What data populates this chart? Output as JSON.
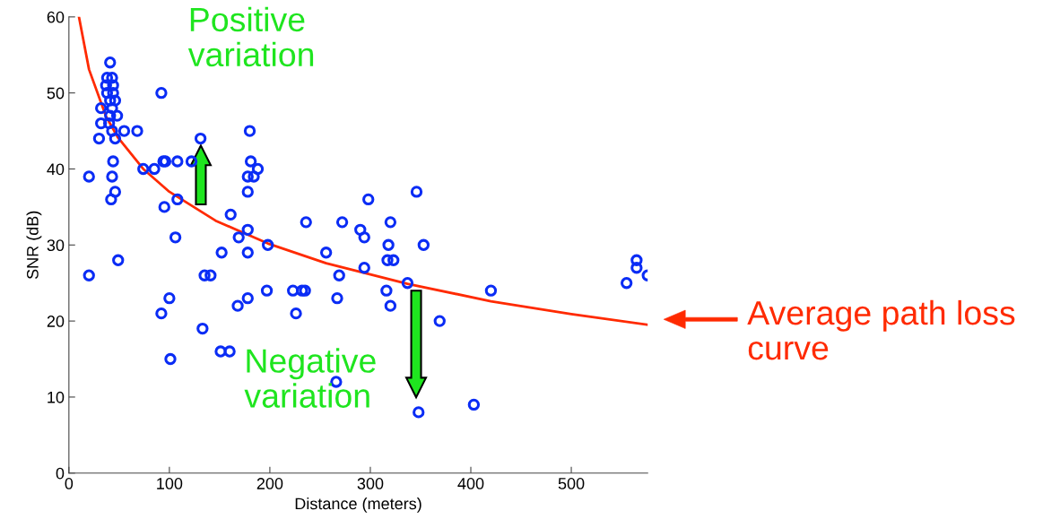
{
  "chart_data": {
    "type": "scatter",
    "xlabel": "Distance (meters)",
    "ylabel": "SNR (dB)",
    "xlim": [
      0,
      576
    ],
    "ylim": [
      0,
      60
    ],
    "xticks": [
      0,
      100,
      200,
      300,
      400,
      500
    ],
    "yticks": [
      0,
      10,
      20,
      30,
      40,
      50,
      60
    ],
    "grid": false,
    "legend": false,
    "marker": "circle",
    "series": [
      {
        "color": "#0a2cf5",
        "x": [
          20,
          20,
          30,
          32,
          32,
          41,
          38,
          43,
          37,
          44,
          38,
          44,
          41,
          46,
          43,
          41,
          48,
          40,
          43,
          55,
          68,
          46,
          92,
          131,
          44,
          43,
          74,
          85,
          94,
          96,
          108,
          122,
          46,
          42,
          95,
          108,
          161,
          106,
          169,
          178,
          180,
          181,
          188,
          178,
          184,
          178,
          236,
          198,
          256,
          152,
          178,
          135,
          141,
          197,
          223,
          232,
          235,
          100,
          178,
          92,
          168,
          226,
          133,
          151,
          160,
          101,
          49,
          346,
          298,
          272,
          320,
          290,
          294,
          318,
          353,
          317,
          323,
          294,
          269,
          337,
          316,
          267,
          320,
          369,
          266,
          348,
          403,
          420,
          565,
          565,
          555,
          576
        ],
        "values": [
          39,
          26,
          44,
          46,
          48,
          54,
          52,
          52,
          51,
          51,
          50,
          50,
          49,
          49,
          48,
          47,
          47,
          46,
          45,
          45,
          45,
          44,
          50,
          44,
          41,
          39,
          40,
          40,
          41,
          41,
          41,
          41,
          37,
          36,
          35,
          36,
          34,
          31,
          31,
          32,
          45,
          41,
          40,
          39,
          39,
          37,
          33,
          30,
          29,
          29,
          29,
          26,
          26,
          24,
          24,
          24,
          24,
          23,
          23,
          21,
          22,
          21,
          19,
          16,
          16,
          15,
          28,
          37,
          36,
          33,
          33,
          32,
          31,
          30,
          30,
          28,
          28,
          27,
          26,
          25,
          24,
          23,
          22,
          20,
          12,
          8,
          9,
          24,
          28,
          27,
          25,
          26
        ]
      },
      {
        "type": "line",
        "color": "#ff2a00",
        "marker": "none",
        "x": [
          10,
          20,
          37,
          49,
          74,
          100,
          146,
          198,
          256,
          337,
          420,
          500,
          576
        ],
        "values": [
          60,
          53.1,
          46.9,
          44.1,
          40,
          37,
          33.2,
          30.2,
          27.6,
          24.9,
          22.6,
          20.9,
          19.5
        ]
      }
    ],
    "annotations": [
      "Positive\nvariation",
      "Negative\nvariation",
      "Average path loss\ncurve"
    ]
  }
}
